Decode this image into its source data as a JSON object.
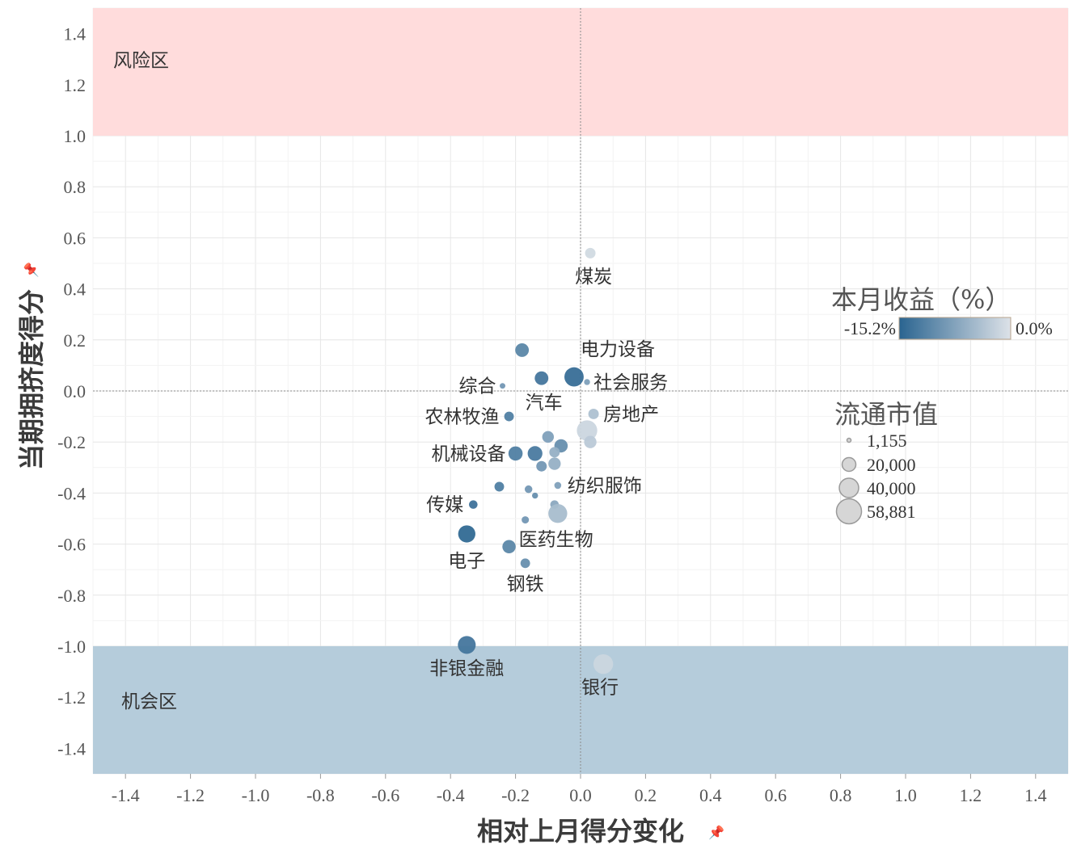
{
  "chart_data": {
    "type": "scatter",
    "xlabel": "相对上月得分变化",
    "ylabel": "当期拥挤度得分",
    "xlim": [
      -1.5,
      1.5
    ],
    "ylim": [
      -1.5,
      1.5
    ],
    "x_ticks": [
      -1.4,
      -1.2,
      -1.0,
      -0.8,
      -0.6,
      -0.4,
      -0.2,
      0.0,
      0.2,
      0.4,
      0.6,
      0.8,
      1.0,
      1.2,
      1.4
    ],
    "y_ticks": [
      -1.4,
      -1.2,
      -1.0,
      -0.8,
      -0.6,
      -0.4,
      -0.2,
      0.0,
      0.2,
      0.4,
      0.6,
      0.8,
      1.0,
      1.2,
      1.4
    ],
    "x_tick_labels": [
      "-1.4",
      "-1.2",
      "-1.0",
      "-0.8",
      "-0.6",
      "-0.4",
      "-0.2",
      "0.0",
      "0.2",
      "0.4",
      "0.6",
      "0.8",
      "1.0",
      "1.2",
      "1.4"
    ],
    "y_tick_labels": [
      "-1.4",
      "-1.2",
      "-1.0",
      "-0.8",
      "-0.6",
      "-0.4",
      "-0.2",
      "0.0",
      "0.2",
      "0.4",
      "0.6",
      "0.8",
      "1.0",
      "1.2",
      "1.4"
    ],
    "reference_lines": {
      "x": 0.0,
      "y": 0.0
    },
    "zones": [
      {
        "name": "风险区",
        "y_from": 1.0,
        "y_to": 1.5,
        "color": "#ffdcdc"
      },
      {
        "name": "机会区",
        "y_from": -1.5,
        "y_to": -1.0,
        "color": "#b5ccdb"
      }
    ],
    "color_legend": {
      "title": "本月收益（%）",
      "min_label": "-15.2%",
      "max_label": "0.0%",
      "min_value": -15.2,
      "max_value": 0.0,
      "min_color": "#2a6490",
      "max_color": "#dde2e8"
    },
    "size_legend": {
      "title": "流通市值",
      "values": [
        1155,
        20000,
        40000,
        58881
      ],
      "labels": [
        "1,155",
        "20,000",
        "40,000",
        "58,881"
      ]
    },
    "points": [
      {
        "name": "煤炭",
        "x": 0.03,
        "y": 0.54,
        "ret": -1.0,
        "cap": 9000
      },
      {
        "name": "电力设备",
        "x": -0.02,
        "y": 0.055,
        "ret": -14.0,
        "cap": 42000
      },
      {
        "name": "社会服务",
        "x": 0.02,
        "y": 0.035,
        "ret": -8.0,
        "cap": 1500
      },
      {
        "name": "综合",
        "x": -0.24,
        "y": 0.02,
        "ret": -9.0,
        "cap": 1155
      },
      {
        "name": "汽车",
        "x": -0.12,
        "y": 0.05,
        "ret": -13.0,
        "cap": 18000
      },
      {
        "name": "",
        "x": -0.18,
        "y": 0.16,
        "ret": -11.0,
        "cap": 18000
      },
      {
        "name": "房地产",
        "x": 0.04,
        "y": -0.09,
        "ret": -4.0,
        "cap": 9000
      },
      {
        "name": "农林牧渔",
        "x": -0.22,
        "y": -0.1,
        "ret": -12.0,
        "cap": 7000
      },
      {
        "name": "",
        "x": 0.02,
        "y": -0.155,
        "ret": -1.5,
        "cap": 48000
      },
      {
        "name": "",
        "x": 0.03,
        "y": -0.2,
        "ret": -3.0,
        "cap": 14000
      },
      {
        "name": "",
        "x": -0.1,
        "y": -0.18,
        "ret": -8.0,
        "cap": 12000
      },
      {
        "name": "",
        "x": -0.06,
        "y": -0.215,
        "ret": -10.0,
        "cap": 17000
      },
      {
        "name": "机械设备",
        "x": -0.2,
        "y": -0.245,
        "ret": -12.0,
        "cap": 20000
      },
      {
        "name": "",
        "x": -0.14,
        "y": -0.245,
        "ret": -12.5,
        "cap": 22000
      },
      {
        "name": "",
        "x": -0.08,
        "y": -0.24,
        "ret": -6.0,
        "cap": 9000
      },
      {
        "name": "",
        "x": -0.12,
        "y": -0.295,
        "ret": -9.0,
        "cap": 9000
      },
      {
        "name": "",
        "x": -0.08,
        "y": -0.285,
        "ret": -6.0,
        "cap": 14000
      },
      {
        "name": "纺织服饰",
        "x": -0.07,
        "y": -0.37,
        "ret": -8.0,
        "cap": 2500
      },
      {
        "name": "",
        "x": -0.25,
        "y": -0.375,
        "ret": -12.0,
        "cap": 7000
      },
      {
        "name": "",
        "x": -0.16,
        "y": -0.385,
        "ret": -9.0,
        "cap": 3500
      },
      {
        "name": "",
        "x": -0.14,
        "y": -0.41,
        "ret": -10.0,
        "cap": 1500
      },
      {
        "name": "传媒",
        "x": -0.33,
        "y": -0.445,
        "ret": -13.5,
        "cap": 5000
      },
      {
        "name": "",
        "x": -0.08,
        "y": -0.445,
        "ret": -7.0,
        "cap": 5000
      },
      {
        "name": "",
        "x": -0.07,
        "y": -0.48,
        "ret": -4.5,
        "cap": 40000
      },
      {
        "name": "",
        "x": -0.17,
        "y": -0.505,
        "ret": -9.0,
        "cap": 3000
      },
      {
        "name": "电子",
        "x": -0.35,
        "y": -0.56,
        "ret": -14.5,
        "cap": 32000
      },
      {
        "name": "医药生物",
        "x": -0.22,
        "y": -0.61,
        "ret": -11.0,
        "cap": 17000
      },
      {
        "name": "钢铁",
        "x": -0.17,
        "y": -0.675,
        "ret": -10.0,
        "cap": 7000
      },
      {
        "name": "非银金融",
        "x": -0.35,
        "y": -0.995,
        "ret": -13.0,
        "cap": 35000
      },
      {
        "name": "银行",
        "x": 0.07,
        "y": -1.07,
        "ret": -1.5,
        "cap": 44000
      }
    ],
    "labeled_points": [
      {
        "text": "煤炭",
        "x": 0.04,
        "y": 0.45,
        "anchor": "middle"
      },
      {
        "text": "电力设备",
        "x": 0.0,
        "y": 0.165,
        "anchor": "start"
      },
      {
        "text": "社会服务",
        "x": 0.04,
        "y": 0.035,
        "anchor": "start"
      },
      {
        "text": "综合",
        "x": -0.26,
        "y": 0.02,
        "anchor": "end"
      },
      {
        "text": "汽车",
        "x": -0.17,
        "y": -0.045,
        "anchor": "start"
      },
      {
        "text": "房地产",
        "x": 0.07,
        "y": -0.09,
        "anchor": "start"
      },
      {
        "text": "农林牧渔",
        "x": -0.25,
        "y": -0.1,
        "anchor": "end"
      },
      {
        "text": "机械设备",
        "x": -0.23,
        "y": -0.245,
        "anchor": "end"
      },
      {
        "text": "纺织服饰",
        "x": -0.04,
        "y": -0.37,
        "anchor": "start"
      },
      {
        "text": "传媒",
        "x": -0.36,
        "y": -0.445,
        "anchor": "end"
      },
      {
        "text": "医药生物",
        "x": -0.19,
        "y": -0.58,
        "anchor": "start"
      },
      {
        "text": "电子",
        "x": -0.35,
        "y": -0.665,
        "anchor": "middle"
      },
      {
        "text": "钢铁",
        "x": -0.17,
        "y": -0.755,
        "anchor": "middle"
      },
      {
        "text": "非银金融",
        "x": -0.35,
        "y": -1.085,
        "anchor": "middle"
      },
      {
        "text": "银行",
        "x": 0.06,
        "y": -1.16,
        "anchor": "middle"
      }
    ]
  }
}
